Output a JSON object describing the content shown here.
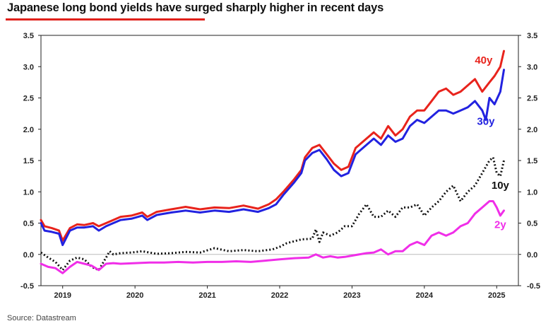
{
  "title": "Japanese long bond yields have surged sharply higher in recent days",
  "source": "Source: Datastream",
  "colors": {
    "title_rule": "#e0201b"
  },
  "chart_data": {
    "type": "line",
    "ylim": [
      -0.5,
      3.5
    ],
    "yticks": [
      "-0.5",
      "0.0",
      "0.5",
      "1.0",
      "1.5",
      "2.0",
      "2.5",
      "3.0",
      "3.5"
    ],
    "ytick_values": [
      -0.5,
      0.0,
      0.5,
      1.0,
      1.5,
      2.0,
      2.5,
      3.0,
      3.5
    ],
    "xlim": [
      2018.7,
      2025.3
    ],
    "xticks": [
      "2019",
      "2020",
      "2021",
      "2022",
      "2023",
      "2024",
      "2025"
    ],
    "xtick_values": [
      2019.0,
      2020.0,
      2021.0,
      2022.0,
      2023.0,
      2024.0,
      2025.0
    ],
    "grid": false,
    "zero_line": true,
    "series": [
      {
        "name": "40y",
        "color": "#e8231c",
        "dash": "solid",
        "x": [
          2018.7,
          2018.75,
          2018.85,
          2018.95,
          2019.0,
          2019.1,
          2019.2,
          2019.3,
          2019.42,
          2019.5,
          2019.6,
          2019.7,
          2019.8,
          2019.95,
          2020.1,
          2020.17,
          2020.3,
          2020.5,
          2020.7,
          2020.9,
          2021.1,
          2021.3,
          2021.5,
          2021.7,
          2021.85,
          2021.95,
          2022.05,
          2022.2,
          2022.3,
          2022.35,
          2022.45,
          2022.55,
          2022.65,
          2022.75,
          2022.85,
          2022.95,
          2023.05,
          2023.2,
          2023.3,
          2023.4,
          2023.5,
          2023.6,
          2023.7,
          2023.8,
          2023.9,
          2024.0,
          2024.1,
          2024.2,
          2024.3,
          2024.4,
          2024.5,
          2024.6,
          2024.7,
          2024.8,
          2024.9,
          2024.97,
          2025.05,
          2025.1
        ],
        "y": [
          0.55,
          0.45,
          0.42,
          0.38,
          0.22,
          0.42,
          0.48,
          0.47,
          0.5,
          0.45,
          0.5,
          0.55,
          0.6,
          0.62,
          0.67,
          0.6,
          0.68,
          0.72,
          0.76,
          0.72,
          0.75,
          0.74,
          0.78,
          0.73,
          0.8,
          0.88,
          1.0,
          1.2,
          1.35,
          1.55,
          1.7,
          1.75,
          1.6,
          1.45,
          1.35,
          1.4,
          1.7,
          1.85,
          1.95,
          1.85,
          2.05,
          1.9,
          2.0,
          2.2,
          2.3,
          2.3,
          2.45,
          2.6,
          2.65,
          2.55,
          2.6,
          2.7,
          2.8,
          2.6,
          2.75,
          2.85,
          3.0,
          3.25
        ]
      },
      {
        "name": "30y",
        "color": "#2222e0",
        "dash": "solid",
        "x": [
          2018.7,
          2018.75,
          2018.85,
          2018.95,
          2019.0,
          2019.1,
          2019.2,
          2019.3,
          2019.42,
          2019.5,
          2019.6,
          2019.7,
          2019.8,
          2019.95,
          2020.1,
          2020.17,
          2020.3,
          2020.5,
          2020.7,
          2020.9,
          2021.1,
          2021.3,
          2021.5,
          2021.7,
          2021.85,
          2021.95,
          2022.05,
          2022.2,
          2022.3,
          2022.35,
          2022.45,
          2022.55,
          2022.65,
          2022.75,
          2022.85,
          2022.95,
          2023.05,
          2023.2,
          2023.3,
          2023.4,
          2023.5,
          2023.6,
          2023.7,
          2023.8,
          2023.9,
          2024.0,
          2024.1,
          2024.2,
          2024.3,
          2024.4,
          2024.5,
          2024.6,
          2024.7,
          2024.8,
          2024.85,
          2024.9,
          2024.97,
          2025.05,
          2025.1
        ],
        "y": [
          0.5,
          0.38,
          0.36,
          0.33,
          0.15,
          0.38,
          0.43,
          0.43,
          0.45,
          0.38,
          0.45,
          0.5,
          0.55,
          0.57,
          0.62,
          0.55,
          0.63,
          0.67,
          0.7,
          0.67,
          0.7,
          0.68,
          0.72,
          0.68,
          0.74,
          0.8,
          0.95,
          1.15,
          1.3,
          1.5,
          1.62,
          1.67,
          1.52,
          1.35,
          1.25,
          1.3,
          1.6,
          1.75,
          1.85,
          1.75,
          1.9,
          1.8,
          1.85,
          2.05,
          2.15,
          2.1,
          2.2,
          2.3,
          2.3,
          2.25,
          2.3,
          2.35,
          2.45,
          2.3,
          2.15,
          2.5,
          2.4,
          2.6,
          2.95
        ]
      },
      {
        "name": "10y",
        "color": "#111111",
        "dash": "dotted",
        "x": [
          2018.7,
          2018.8,
          2018.9,
          2019.0,
          2019.1,
          2019.2,
          2019.3,
          2019.4,
          2019.5,
          2019.6,
          2019.65,
          2019.7,
          2019.8,
          2019.95,
          2020.1,
          2020.3,
          2020.5,
          2020.7,
          2020.9,
          2021.1,
          2021.3,
          2021.5,
          2021.7,
          2021.9,
          2022.0,
          2022.1,
          2022.3,
          2022.45,
          2022.5,
          2022.55,
          2022.6,
          2022.7,
          2022.8,
          2022.9,
          2023.0,
          2023.1,
          2023.2,
          2023.3,
          2023.4,
          2023.5,
          2023.6,
          2023.7,
          2023.8,
          2023.9,
          2024.0,
          2024.1,
          2024.2,
          2024.3,
          2024.4,
          2024.5,
          2024.6,
          2024.7,
          2024.8,
          2024.9,
          2024.95,
          2025.0,
          2025.05,
          2025.1
        ],
        "y": [
          0.03,
          -0.05,
          -0.12,
          -0.25,
          -0.1,
          -0.05,
          -0.08,
          -0.2,
          -0.25,
          -0.05,
          0.05,
          0.0,
          0.02,
          0.03,
          0.05,
          0.01,
          0.02,
          0.04,
          0.03,
          0.1,
          0.05,
          0.07,
          0.05,
          0.08,
          0.12,
          0.18,
          0.24,
          0.25,
          0.4,
          0.2,
          0.35,
          0.3,
          0.35,
          0.45,
          0.45,
          0.65,
          0.8,
          0.6,
          0.6,
          0.7,
          0.6,
          0.75,
          0.75,
          0.8,
          0.62,
          0.75,
          0.85,
          1.0,
          1.1,
          0.85,
          1.0,
          1.1,
          1.3,
          1.5,
          1.55,
          1.3,
          1.25,
          1.5
        ]
      },
      {
        "name": "2y",
        "color": "#f02ee8",
        "dash": "solid",
        "x": [
          2018.7,
          2018.8,
          2018.9,
          2019.0,
          2019.1,
          2019.2,
          2019.3,
          2019.4,
          2019.5,
          2019.6,
          2019.7,
          2019.8,
          2020.0,
          2020.2,
          2020.4,
          2020.6,
          2020.8,
          2021.0,
          2021.2,
          2021.4,
          2021.6,
          2021.8,
          2022.0,
          2022.2,
          2022.4,
          2022.5,
          2022.6,
          2022.7,
          2022.8,
          2022.9,
          2023.0,
          2023.2,
          2023.3,
          2023.4,
          2023.5,
          2023.6,
          2023.7,
          2023.8,
          2023.9,
          2024.0,
          2024.1,
          2024.2,
          2024.3,
          2024.4,
          2024.5,
          2024.6,
          2024.7,
          2024.8,
          2024.9,
          2024.95,
          2025.0,
          2025.05,
          2025.1
        ],
        "y": [
          -0.15,
          -0.2,
          -0.22,
          -0.3,
          -0.2,
          -0.12,
          -0.15,
          -0.18,
          -0.25,
          -0.15,
          -0.14,
          -0.15,
          -0.14,
          -0.13,
          -0.13,
          -0.12,
          -0.13,
          -0.12,
          -0.12,
          -0.11,
          -0.12,
          -0.1,
          -0.08,
          -0.06,
          -0.05,
          0.0,
          -0.05,
          -0.03,
          -0.05,
          -0.04,
          -0.02,
          0.02,
          0.03,
          0.08,
          0.0,
          0.05,
          0.05,
          0.15,
          0.2,
          0.15,
          0.3,
          0.35,
          0.3,
          0.35,
          0.45,
          0.5,
          0.65,
          0.75,
          0.85,
          0.85,
          0.75,
          0.62,
          0.7
        ]
      }
    ]
  }
}
